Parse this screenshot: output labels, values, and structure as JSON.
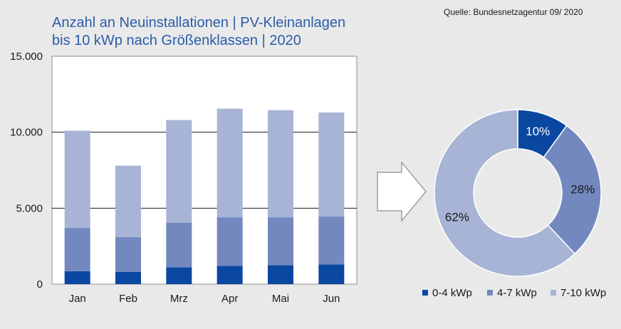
{
  "title_line1": "Anzahl an Neuinstallationen | PV-Kleinanlagen",
  "title_line2": "bis 10 kWp nach Größenklassen | 2020",
  "source": "Quelle:  Bundesnetzagentur  09/ 2020",
  "colors": {
    "background": "#e9e9ea",
    "plot_bg": "#ffffff",
    "series": [
      "#0a47a1",
      "#7288bf",
      "#a7b4d5"
    ],
    "title": "#2b5da8"
  },
  "chart_data": [
    {
      "type": "bar",
      "stacked": true,
      "categories": [
        "Jan",
        "Feb",
        "Mrz",
        "Apr",
        "Mai",
        "Jun"
      ],
      "series": [
        {
          "name": "0-4 kWp",
          "values": [
            850,
            800,
            1100,
            1200,
            1250,
            1300
          ]
        },
        {
          "name": "4-7 kWp",
          "values": [
            2850,
            2300,
            2950,
            3200,
            3150,
            3150
          ]
        },
        {
          "name": "7-10 kWp",
          "values": [
            6400,
            4700,
            6750,
            7150,
            7050,
            6850
          ]
        }
      ],
      "ylim": [
        0,
        15000
      ],
      "yticks": [
        "0",
        "5.000",
        "10.000",
        "15.000"
      ],
      "ytick_values": [
        0,
        5000,
        10000,
        15000
      ],
      "grid": true
    },
    {
      "type": "pie",
      "donut": true,
      "labels": [
        "0-4 kWp",
        "4-7 kWp",
        "7-10 kWp"
      ],
      "values": [
        10,
        28,
        62
      ],
      "value_labels": [
        "10%",
        "28%",
        "62%"
      ],
      "legend": "bottom"
    }
  ]
}
